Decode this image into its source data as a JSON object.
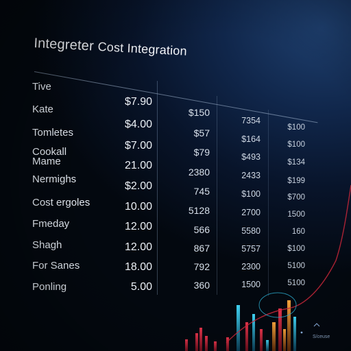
{
  "title_main": "Integreter",
  "title_rest": "Cost Integration",
  "rows": [
    {
      "label": "Tive",
      "v1": "$7.90",
      "v2": "",
      "v3": "",
      "v4": ""
    },
    {
      "label": "Kate",
      "v1": "$4.00",
      "v2": "$150",
      "v3": "7354",
      "v4": "$100"
    },
    {
      "label": "Tomletes",
      "v1": "$7.00",
      "v2": "$57",
      "v3": "$164",
      "v4": "$100"
    },
    {
      "label": "Cookall\nMame",
      "v1": "21.00",
      "v2": "$79",
      "v3": "$493",
      "v4": "$134"
    },
    {
      "label": "Nermighs",
      "v1": "$2.00",
      "v2": "2380",
      "v3": "2433",
      "v4": "$199"
    },
    {
      "label": "Cost ergoles",
      "v1": "10.00",
      "v2": "745",
      "v3": "$100",
      "v4": "$700"
    },
    {
      "label": "Fmeday",
      "v1": "12.00",
      "v2": "5128",
      "v3": "2700",
      "v4": "1500"
    },
    {
      "label": "Shagh",
      "v1": "12.00",
      "v2": "566",
      "v3": "5580",
      "v4": "160"
    },
    {
      "label": "For Sanes",
      "v1": "18.00",
      "v2": "867",
      "v3": "5757",
      "v4": "$100"
    },
    {
      "label": "Ponling",
      "v1": "5.00",
      "v2": "792",
      "v3": "2300",
      "v4": "5100"
    },
    {
      "label": "",
      "v1": "",
      "v2": "360",
      "v3": "1500",
      "v4": "5100"
    }
  ],
  "legend": "S/ceuse",
  "colors": {
    "accent_red": "#c8273a",
    "accent_cyan": "#2aa7c9",
    "accent_orange": "#e0892a",
    "grid": "#9fb4cf"
  }
}
